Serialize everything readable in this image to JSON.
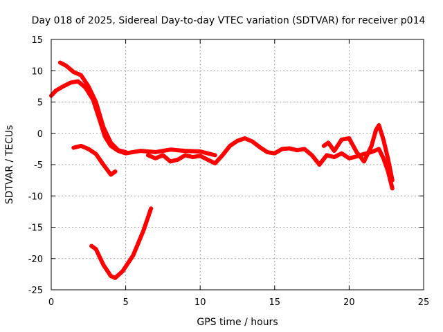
{
  "chart_data": {
    "type": "scatter",
    "title": "Day 018 of 2025, Sidereal Day-to-day VTEC variation (SDTVAR) for receiver p014",
    "xlabel": "GPS time / hours",
    "ylabel": "SDTVAR / TECUs",
    "xlim": [
      0,
      25
    ],
    "ylim": [
      -25,
      15
    ],
    "xticks": [
      0,
      5,
      10,
      15,
      20,
      25
    ],
    "yticks": [
      -25,
      -20,
      -15,
      -10,
      -5,
      0,
      5,
      10,
      15
    ],
    "grid": true,
    "marker": "plus",
    "color": "#ff0000",
    "series": [
      {
        "name": "trace-main-start",
        "x": [
          0.0,
          0.3,
          0.8,
          1.3,
          1.8,
          2.3,
          2.8,
          3.2,
          3.6,
          4.0,
          4.5,
          5.0,
          6.0,
          7.0,
          8.0,
          9.0,
          10.0,
          11.0
        ],
        "y": [
          6.0,
          6.8,
          7.5,
          8.1,
          8.3,
          7.3,
          5.4,
          2.5,
          -0.5,
          -2.0,
          -2.8,
          -3.2,
          -2.8,
          -3.0,
          -2.6,
          -2.8,
          -2.9,
          -3.5
        ]
      },
      {
        "name": "trace-high-arc",
        "x": [
          0.6,
          1.0,
          1.5,
          2.0,
          2.5,
          3.0,
          3.5,
          4.0,
          4.5,
          5.0
        ],
        "y": [
          11.3,
          10.8,
          9.8,
          9.3,
          7.5,
          5.0,
          1.0,
          -1.5,
          -2.7,
          -3.0
        ]
      },
      {
        "name": "trace-arc-lower",
        "x": [
          1.5,
          2.0,
          2.5,
          3.0,
          3.5,
          4.0,
          4.3
        ],
        "y": [
          -2.3,
          -2.0,
          -2.5,
          -3.3,
          -5.0,
          -6.6,
          -6.1
        ]
      },
      {
        "name": "trace-deep-arc",
        "x": [
          2.7,
          3.0,
          3.5,
          4.0,
          4.3,
          4.8,
          5.5,
          6.2,
          6.7
        ],
        "y": [
          -18.0,
          -18.5,
          -21.0,
          -22.8,
          -23.1,
          -22.0,
          -19.5,
          -15.5,
          -12.0
        ]
      },
      {
        "name": "trace-middle",
        "x": [
          6.5,
          7.0,
          7.5,
          8.0,
          8.5,
          9.0,
          9.5,
          10.0,
          10.5,
          11.0,
          11.5,
          12.0,
          12.5,
          13.0,
          13.5,
          14.0,
          14.5,
          15.0,
          15.5,
          16.0,
          16.5,
          17.0,
          17.5,
          18.0
        ],
        "y": [
          -3.5,
          -4.0,
          -3.5,
          -4.5,
          -4.2,
          -3.5,
          -3.8,
          -3.6,
          -4.2,
          -4.8,
          -3.5,
          -2.0,
          -1.2,
          -0.8,
          -1.3,
          -2.2,
          -3.0,
          -3.2,
          -2.5,
          -2.4,
          -2.7,
          -2.5,
          -3.5,
          -5.0
        ]
      },
      {
        "name": "trace-late",
        "x": [
          18.0,
          18.5,
          19.0,
          19.5,
          20.0,
          20.5,
          21.0,
          21.5,
          22.0,
          22.3,
          22.6,
          22.9
        ],
        "y": [
          -5.0,
          -3.5,
          -3.8,
          -3.2,
          -4.0,
          -3.7,
          -3.3,
          -3.0,
          -2.5,
          -4.0,
          -6.0,
          -8.8
        ]
      },
      {
        "name": "trace-late-upper",
        "x": [
          18.3,
          18.6,
          19.0,
          19.5,
          20.0,
          20.5,
          21.0,
          21.5,
          21.8,
          22.0,
          22.3,
          22.6,
          22.9
        ],
        "y": [
          -2.0,
          -1.5,
          -2.8,
          -1.0,
          -0.8,
          -3.0,
          -4.5,
          -2.0,
          0.5,
          1.3,
          -1.0,
          -4.0,
          -7.5
        ]
      }
    ]
  }
}
